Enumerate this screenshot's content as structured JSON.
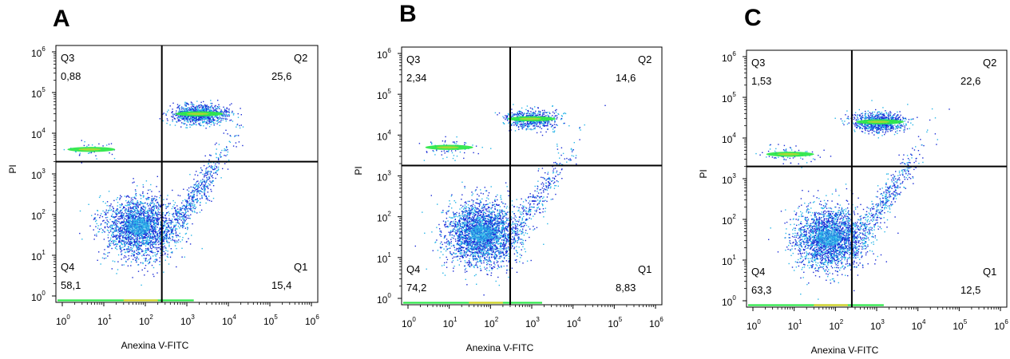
{
  "chart_data": [
    {
      "type": "scatter",
      "panel_label": "A",
      "xlabel": "Anexina V-FITC",
      "ylabel": "PI",
      "x_scale": "log",
      "y_scale": "log",
      "xlim": [
        1,
        1000000
      ],
      "ylim": [
        1,
        1000000
      ],
      "x_ticks": [
        "10^0",
        "10^1",
        "10^2",
        "10^3",
        "10^4",
        "10^5",
        "10^6"
      ],
      "y_ticks": [
        "10^0",
        "10^1",
        "10^2",
        "10^3",
        "10^4",
        "10^5",
        "10^6"
      ],
      "gate_x": 250,
      "gate_y": 2000,
      "quadrants": [
        {
          "name": "Q3",
          "value": "0,88"
        },
        {
          "name": "Q2",
          "value": "25,6"
        },
        {
          "name": "Q4",
          "value": "58,1"
        },
        {
          "name": "Q1",
          "value": "15,4"
        }
      ],
      "populations": [
        {
          "x": 70,
          "y": 50,
          "weight": 58
        },
        {
          "x": 1500,
          "y": 300,
          "weight": 15
        },
        {
          "x": 2000,
          "y": 30000,
          "weight": 26
        },
        {
          "x": 5,
          "y": 4000,
          "weight": 1
        }
      ]
    },
    {
      "type": "scatter",
      "panel_label": "B",
      "xlabel": "Anexina V-FITC",
      "ylabel": "PI",
      "x_scale": "log",
      "y_scale": "log",
      "xlim": [
        1,
        1000000
      ],
      "ylim": [
        1,
        1000000
      ],
      "x_ticks": [
        "10^0",
        "10^1",
        "10^2",
        "10^3",
        "10^4",
        "10^5",
        "10^6"
      ],
      "y_ticks": [
        "10^0",
        "10^1",
        "10^2",
        "10^3",
        "10^4",
        "10^5",
        "10^6"
      ],
      "gate_x": 300,
      "gate_y": 1800,
      "quadrants": [
        {
          "name": "Q3",
          "value": "2,34"
        },
        {
          "name": "Q2",
          "value": "14,6"
        },
        {
          "name": "Q4",
          "value": "74,2"
        },
        {
          "name": "Q1",
          "value": "8,83"
        }
      ],
      "populations": [
        {
          "x": 60,
          "y": 40,
          "weight": 74
        },
        {
          "x": 1200,
          "y": 250,
          "weight": 9
        },
        {
          "x": 1000,
          "y": 25000,
          "weight": 15
        },
        {
          "x": 10,
          "y": 5000,
          "weight": 2
        }
      ]
    },
    {
      "type": "scatter",
      "panel_label": "C",
      "xlabel": "Anexina V-FITC",
      "ylabel": "PI",
      "x_scale": "log",
      "y_scale": "log",
      "xlim": [
        1,
        1000000
      ],
      "ylim": [
        1,
        1000000
      ],
      "x_ticks": [
        "10^0",
        "10^1",
        "10^2",
        "10^3",
        "10^4",
        "10^5",
        "10^6"
      ],
      "y_ticks": [
        "10^0",
        "10^1",
        "10^2",
        "10^3",
        "10^4",
        "10^5",
        "10^6"
      ],
      "gate_x": 250,
      "gate_y": 2000,
      "quadrants": [
        {
          "name": "Q3",
          "value": "1,53"
        },
        {
          "name": "Q2",
          "value": "22,6"
        },
        {
          "name": "Q4",
          "value": "63,3"
        },
        {
          "name": "Q1",
          "value": "12,5"
        }
      ],
      "populations": [
        {
          "x": 70,
          "y": 35,
          "weight": 63
        },
        {
          "x": 1500,
          "y": 300,
          "weight": 12
        },
        {
          "x": 1200,
          "y": 25000,
          "weight": 23
        },
        {
          "x": 8,
          "y": 4000,
          "weight": 2
        }
      ]
    }
  ],
  "colors": {
    "frame": "#000000",
    "density_low": "#1a2bd6",
    "density_mid": "#29b6e8",
    "density_high": "#2ee84a",
    "density_peak": "#d8d02a"
  }
}
